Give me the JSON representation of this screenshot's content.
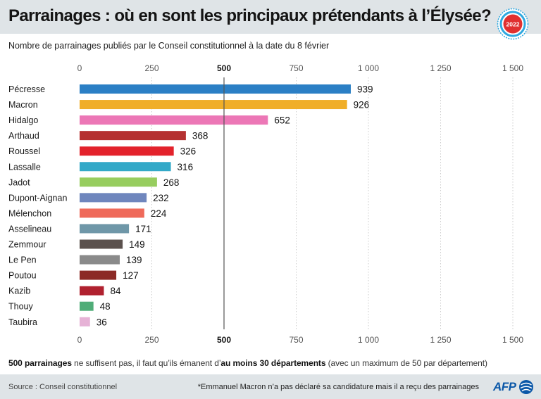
{
  "header": {
    "title": "Parrainages : où en sont les principaux prétendants à l’Élysée?",
    "logo_year": "2022",
    "subtitle": "Nombre de parrainages publiés par le Conseil constitutionnel à la date du 8 février"
  },
  "note": {
    "part1": "500 parrainages",
    "part2": " ne suffisent pas, il faut qu’ils émanent d’",
    "part3": "au moins 30 départements",
    "part4": " (avec un maximum de 50 par département)"
  },
  "footer": {
    "source": "Source : Conseil constitutionnel",
    "footnote": "*Emmanuel Macron n’a pas déclaré sa candidature mais il a reçu des parrainages",
    "brand": "AFP"
  },
  "colors": {
    "header_bg": "#dfe4e7",
    "logo_red": "#e0302f",
    "logo_blue": "#2fa8df",
    "brand_blue": "#0a57a8",
    "threshold_line": "#555555",
    "grid": "#cccccc"
  },
  "chart_data": {
    "type": "bar",
    "orientation": "horizontal",
    "xlim": [
      0,
      1500
    ],
    "ticks": [
      0,
      250,
      500,
      750,
      1000,
      1250,
      1500
    ],
    "tick_labels": [
      "0",
      "250",
      "500",
      "750",
      "1 000",
      "1 250",
      "1 500"
    ],
    "highlight_tick": 500,
    "threshold": 500,
    "grid": true,
    "categories": [
      "Pécresse",
      "Macron",
      "Hidalgo",
      "Arthaud",
      "Roussel",
      "Lassalle",
      "Jadot",
      "Dupont-Aignan",
      "Mélenchon",
      "Asselineau",
      "Zemmour",
      "Le Pen",
      "Poutou",
      "Kazib",
      "Thouy",
      "Taubira"
    ],
    "values": [
      939,
      926,
      652,
      368,
      326,
      316,
      268,
      232,
      224,
      171,
      149,
      139,
      127,
      84,
      48,
      36
    ],
    "bar_colors": [
      "#2b7fc5",
      "#f0ae28",
      "#ec77b6",
      "#b53131",
      "#e3222b",
      "#33a9c8",
      "#97cd5f",
      "#6f86bd",
      "#ef6a5a",
      "#6f97a8",
      "#5b514d",
      "#8a8a8a",
      "#8c2a26",
      "#b0212f",
      "#50ad78",
      "#e6b2d6"
    ]
  }
}
